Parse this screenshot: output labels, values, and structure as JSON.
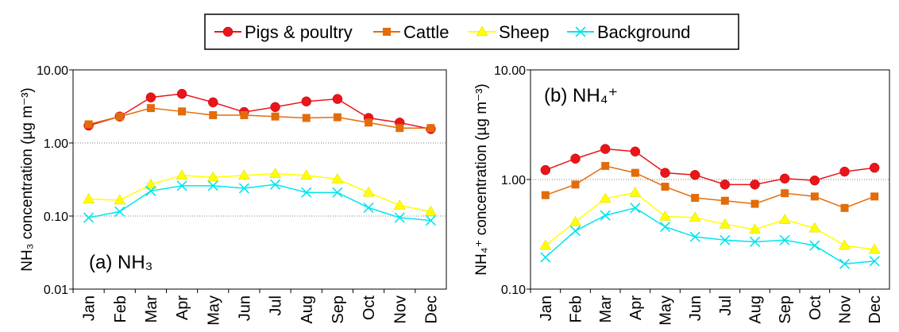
{
  "chart_data": [
    {
      "type": "line",
      "title": "(a) NH₃",
      "y_label": "NH₃ concentration (µg m⁻³)",
      "categories": [
        "Jan",
        "Feb",
        "Mar",
        "Apr",
        "May",
        "Jun",
        "Jul",
        "Aug",
        "Sep",
        "Oct",
        "Nov",
        "Dec"
      ],
      "log_y": true,
      "grid": true,
      "ylim": [
        0.01,
        10
      ],
      "yticks": [
        {
          "value": 0.01,
          "label": "0.01"
        },
        {
          "value": 0.1,
          "label": "0.10"
        },
        {
          "value": 1,
          "label": "1.00"
        },
        {
          "value": 10,
          "label": "10.00"
        }
      ],
      "series": [
        {
          "name": "Pigs & poultry",
          "color": "#e8151b",
          "marker": "circle",
          "values": [
            1.73,
            2.3,
            4.2,
            4.7,
            3.6,
            2.65,
            3.1,
            3.7,
            4.0,
            2.2,
            1.9,
            1.55
          ]
        },
        {
          "name": "Cattle",
          "color": "#e36c0a",
          "marker": "square",
          "values": [
            1.8,
            2.3,
            3.0,
            2.7,
            2.4,
            2.4,
            2.3,
            2.2,
            2.25,
            1.9,
            1.6,
            1.6
          ]
        },
        {
          "name": "Sheep",
          "color": "#ffff00",
          "marker": "triangle",
          "values": [
            0.17,
            0.165,
            0.27,
            0.36,
            0.34,
            0.36,
            0.38,
            0.36,
            0.32,
            0.21,
            0.14,
            0.115
          ]
        },
        {
          "name": "Background",
          "color": "#00e5ee",
          "marker": "x",
          "values": [
            0.095,
            0.115,
            0.22,
            0.26,
            0.26,
            0.24,
            0.27,
            0.21,
            0.21,
            0.13,
            0.095,
            0.087
          ]
        }
      ]
    },
    {
      "type": "line",
      "title": "(b) NH₄⁺",
      "y_label": "NH₄⁺ concentration (µg m⁻³)",
      "categories": [
        "Jan",
        "Feb",
        "Mar",
        "Apr",
        "May",
        "Jun",
        "Jul",
        "Aug",
        "Sep",
        "Oct",
        "Nov",
        "Dec"
      ],
      "log_y": true,
      "grid": true,
      "ylim": [
        0.1,
        10
      ],
      "yticks": [
        {
          "value": 0.1,
          "label": "0.10"
        },
        {
          "value": 1,
          "label": "1.00"
        },
        {
          "value": 10,
          "label": "10.00"
        }
      ],
      "series": [
        {
          "values": [
            1.22,
            1.55,
            1.9,
            1.8,
            1.15,
            1.1,
            0.9,
            0.9,
            1.02,
            0.98,
            1.18,
            1.28
          ]
        },
        {
          "values": [
            0.72,
            0.9,
            1.33,
            1.15,
            0.86,
            0.68,
            0.64,
            0.6,
            0.75,
            0.7,
            0.55,
            0.7
          ]
        },
        {
          "values": [
            0.25,
            0.41,
            0.67,
            0.76,
            0.46,
            0.45,
            0.39,
            0.35,
            0.43,
            0.36,
            0.25,
            0.23
          ]
        },
        {
          "values": [
            0.195,
            0.34,
            0.47,
            0.55,
            0.37,
            0.3,
            0.28,
            0.27,
            0.28,
            0.25,
            0.17,
            0.18
          ]
        }
      ]
    }
  ]
}
